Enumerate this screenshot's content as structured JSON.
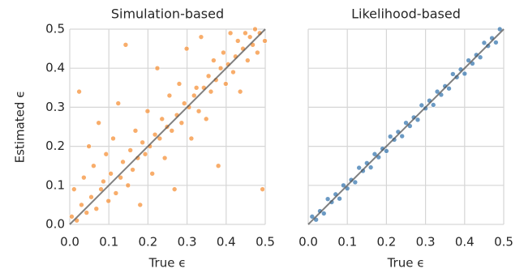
{
  "chart_data": [
    {
      "type": "scatter",
      "title": "Simulation-based",
      "xlabel": "True ϵ",
      "ylabel": "Estimated ϵ",
      "color": "#f5913a",
      "grid": true,
      "xlim": [
        0,
        0.5
      ],
      "ylim": [
        0,
        0.5
      ],
      "xticks": [
        {
          "value": 0,
          "label": "0.0"
        },
        0.1,
        0.2,
        0.3,
        0.4,
        0.5
      ],
      "yticks": [
        {
          "value": 0,
          "label": "0.0"
        },
        0.1,
        0.2,
        0.3,
        0.4,
        0.5
      ],
      "x": [
        0.005,
        0.011,
        0.018,
        0.024,
        0.03,
        0.036,
        0.043,
        0.049,
        0.055,
        0.061,
        0.068,
        0.074,
        0.08,
        0.086,
        0.093,
        0.099,
        0.105,
        0.111,
        0.118,
        0.124,
        0.13,
        0.136,
        0.143,
        0.149,
        0.155,
        0.161,
        0.168,
        0.174,
        0.18,
        0.186,
        0.193,
        0.199,
        0.205,
        0.211,
        0.218,
        0.224,
        0.23,
        0.236,
        0.243,
        0.249,
        0.255,
        0.261,
        0.268,
        0.274,
        0.28,
        0.286,
        0.293,
        0.299,
        0.305,
        0.311,
        0.318,
        0.324,
        0.33,
        0.336,
        0.343,
        0.349,
        0.355,
        0.361,
        0.368,
        0.374,
        0.38,
        0.386,
        0.393,
        0.399,
        0.405,
        0.411,
        0.418,
        0.424,
        0.43,
        0.436,
        0.443,
        0.449,
        0.455,
        0.461,
        0.468,
        0.474,
        0.48,
        0.486,
        0.493,
        0.499
      ],
      "values": [
        0.02,
        0.09,
        0.01,
        0.34,
        0.05,
        0.12,
        0.03,
        0.2,
        0.07,
        0.15,
        0.04,
        0.26,
        0.09,
        0.11,
        0.18,
        0.06,
        0.13,
        0.22,
        0.08,
        0.31,
        0.12,
        0.16,
        0.46,
        0.1,
        0.19,
        0.14,
        0.24,
        0.17,
        0.05,
        0.21,
        0.18,
        0.29,
        0.2,
        0.13,
        0.23,
        0.4,
        0.22,
        0.27,
        0.17,
        0.25,
        0.33,
        0.24,
        0.09,
        0.28,
        0.36,
        0.26,
        0.31,
        0.45,
        0.3,
        0.22,
        0.33,
        0.35,
        0.29,
        0.48,
        0.35,
        0.27,
        0.38,
        0.34,
        0.42,
        0.37,
        0.15,
        0.4,
        0.44,
        0.36,
        0.41,
        0.49,
        0.39,
        0.43,
        0.47,
        0.34,
        0.45,
        0.49,
        0.42,
        0.48,
        0.46,
        0.5,
        0.44,
        0.49,
        0.09,
        0.47
      ]
    },
    {
      "type": "scatter",
      "title": "Likelihood-based",
      "xlabel": "True ϵ",
      "color": "#3a78b0",
      "grid": true,
      "xlim": [
        0,
        0.5
      ],
      "ylim": [
        0,
        0.5
      ],
      "xticks": [
        {
          "value": 0,
          "label": "0.0"
        },
        0.1,
        0.2,
        0.3,
        0.4,
        0.5
      ],
      "x": [
        0.01,
        0.02,
        0.03,
        0.04,
        0.05,
        0.06,
        0.07,
        0.08,
        0.09,
        0.1,
        0.11,
        0.12,
        0.13,
        0.14,
        0.15,
        0.16,
        0.17,
        0.18,
        0.19,
        0.2,
        0.21,
        0.22,
        0.23,
        0.24,
        0.25,
        0.26,
        0.27,
        0.28,
        0.29,
        0.3,
        0.31,
        0.32,
        0.33,
        0.34,
        0.35,
        0.36,
        0.37,
        0.38,
        0.39,
        0.4,
        0.41,
        0.42,
        0.43,
        0.44,
        0.45,
        0.46,
        0.47,
        0.48,
        0.49
      ],
      "values": [
        0.02,
        0.012,
        0.034,
        0.028,
        0.065,
        0.057,
        0.077,
        0.066,
        0.1,
        0.092,
        0.114,
        0.108,
        0.145,
        0.137,
        0.157,
        0.146,
        0.18,
        0.172,
        0.194,
        0.188,
        0.225,
        0.217,
        0.237,
        0.226,
        0.26,
        0.252,
        0.274,
        0.268,
        0.305,
        0.297,
        0.317,
        0.306,
        0.34,
        0.332,
        0.354,
        0.348,
        0.385,
        0.377,
        0.397,
        0.386,
        0.42,
        0.412,
        0.434,
        0.428,
        0.465,
        0.457,
        0.477,
        0.466,
        0.5
      ]
    }
  ]
}
